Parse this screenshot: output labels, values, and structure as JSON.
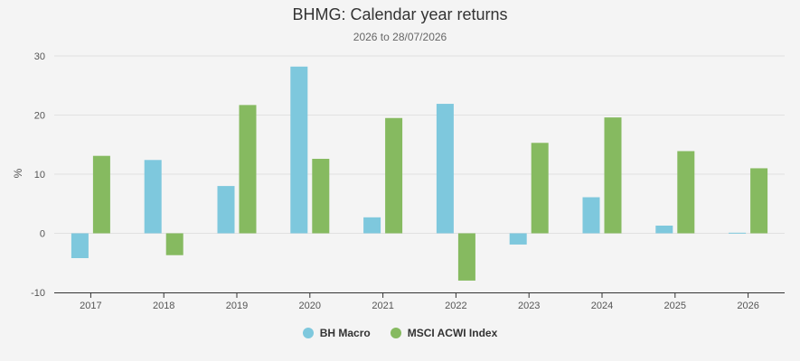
{
  "chart_data": {
    "type": "bar",
    "title": "BHMG: Calendar year returns",
    "subtitle": "2026 to 28/07/2026",
    "xlabel": "",
    "ylabel": "%",
    "ylim": [
      -10,
      30
    ],
    "yticks": [
      -10,
      0,
      10,
      20,
      30
    ],
    "grid": true,
    "legend": "bottom-center",
    "categories": [
      "2017",
      "2018",
      "2019",
      "2020",
      "2021",
      "2022",
      "2023",
      "2024",
      "2025",
      "2026"
    ],
    "series": [
      {
        "name": "BH Macro",
        "color": "#7ec8dd",
        "values": [
          -4.2,
          12.4,
          8.0,
          28.2,
          2.7,
          21.9,
          -1.9,
          6.1,
          1.3,
          0.1
        ]
      },
      {
        "name": "MSCI ACWI Index",
        "color": "#86ba60",
        "values": [
          13.1,
          -3.7,
          21.7,
          12.6,
          19.5,
          -8.0,
          15.3,
          19.6,
          13.9,
          11.0
        ]
      }
    ]
  }
}
